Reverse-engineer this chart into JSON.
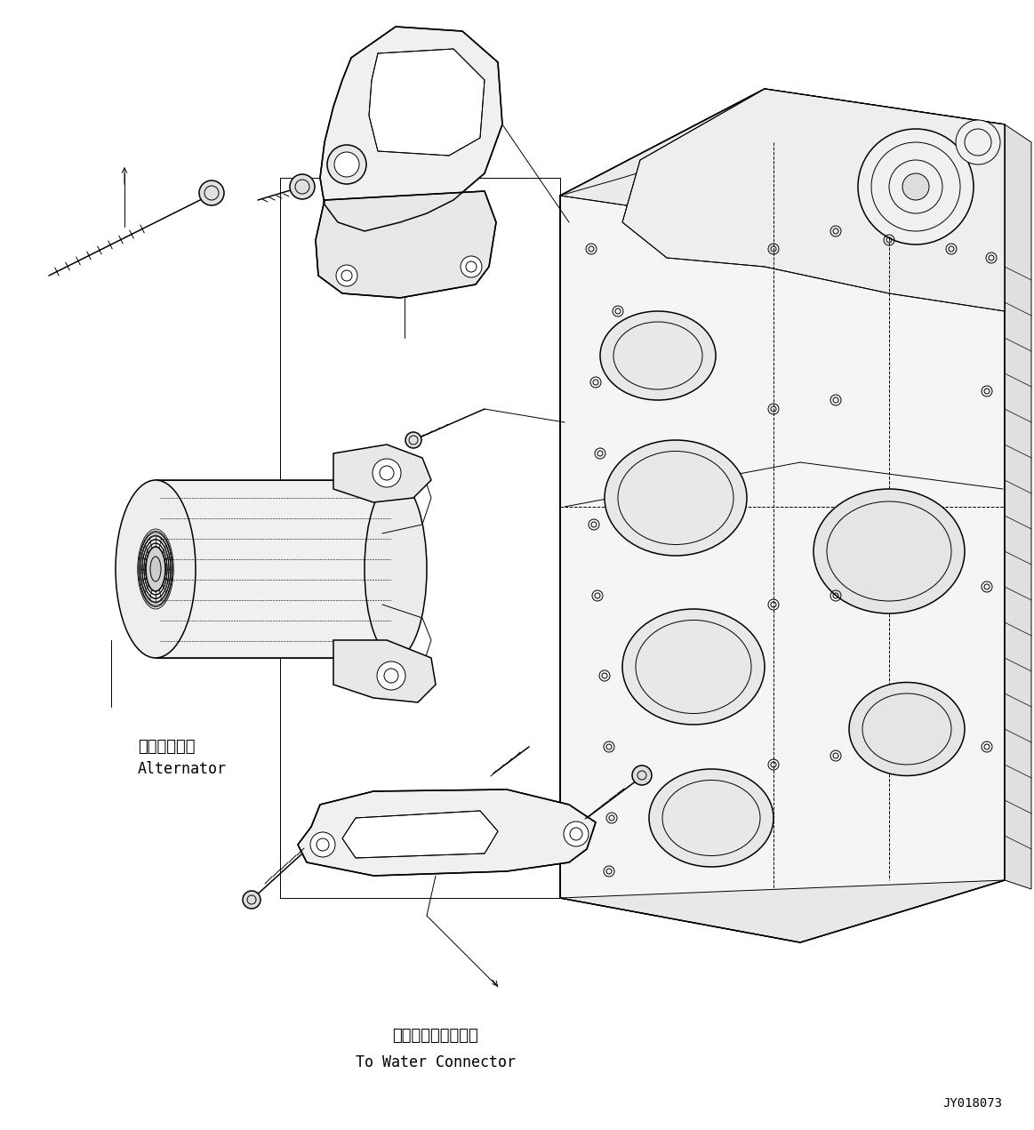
{
  "background_color": "#ffffff",
  "line_color": "#000000",
  "fig_width": 11.63,
  "fig_height": 12.71,
  "dpi": 100,
  "label_alternator_jp": "オルタネータ",
  "label_alternator_en": "Alternator",
  "label_water_jp": "ウォータコネクタヘ",
  "label_water_en": "To Water Connector",
  "label_code": "JY018073",
  "font_size_jp": 13,
  "font_size_en": 12,
  "font_size_code": 10
}
